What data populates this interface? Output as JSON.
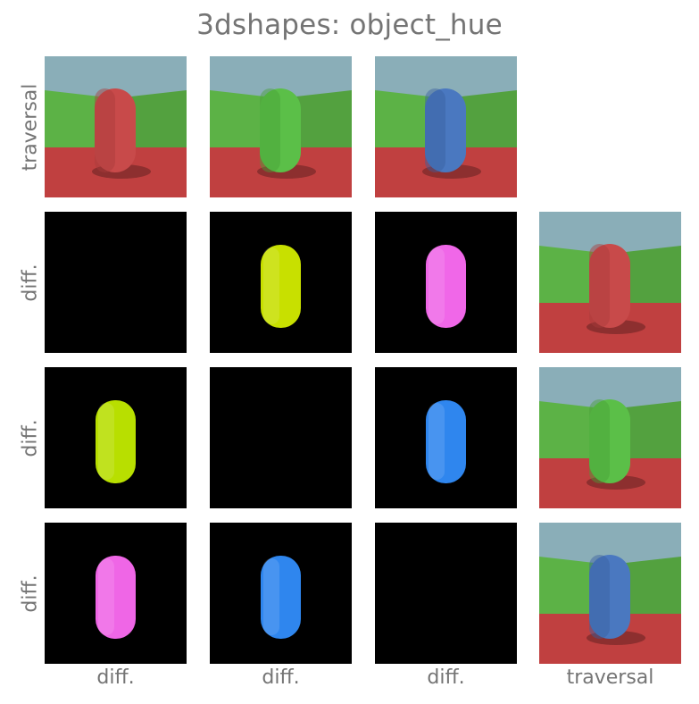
{
  "title": "3dshapes: object_hue",
  "row_labels": [
    "traversal",
    "diff.",
    "diff.",
    "diff."
  ],
  "col_labels": [
    "diff.",
    "diff.",
    "diff.",
    "traversal"
  ],
  "colors": {
    "sky": "#8aaeb8",
    "wall_left": "#5cb246",
    "wall_right": "#53a13f",
    "floor": "#c04040",
    "diff_background": "#000000",
    "text": "#747474"
  },
  "traversal": [
    {
      "object_color": "#c84a4a",
      "object_shade": "#a83b3b"
    },
    {
      "object_color": "#5bbf48",
      "object_shade": "#47a037"
    },
    {
      "object_color": "#4a78c0",
      "object_shade": "#3a5fa0"
    }
  ],
  "diff_matrix": [
    [
      null,
      "#c8e000",
      "#f067e8"
    ],
    [
      "#b8df00",
      null,
      "#2f86ee"
    ],
    [
      "#ef66e6",
      "#2f86ee",
      null
    ]
  ]
}
